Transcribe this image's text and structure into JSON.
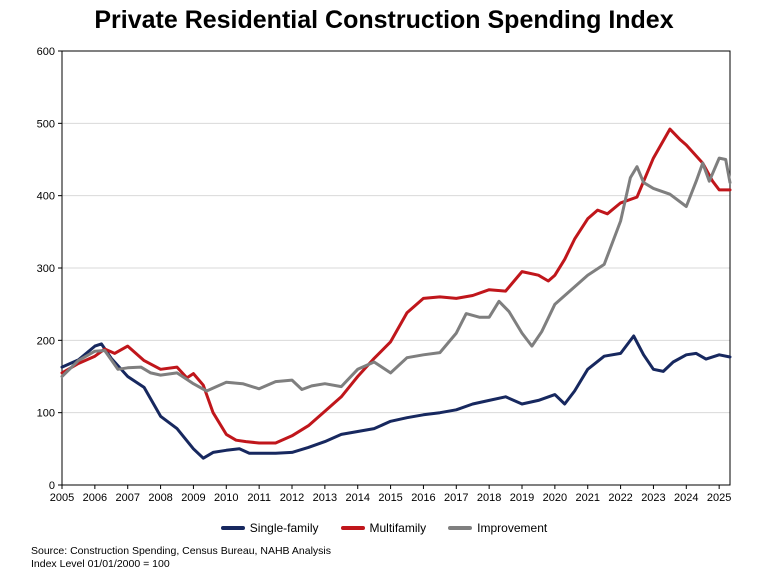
{
  "chart_data": {
    "type": "line",
    "title": "Private Residential Construction Spending Index",
    "xlabel": "",
    "ylabel": "",
    "xlim": [
      2005,
      2025.33
    ],
    "ylim": [
      0,
      600
    ],
    "x_ticks": [
      "2005",
      "2006",
      "2007",
      "2008",
      "2009",
      "2010",
      "2011",
      "2012",
      "2013",
      "2014",
      "2015",
      "2016",
      "2017",
      "2018",
      "2019",
      "2020",
      "2021",
      "2022",
      "2023",
      "2024",
      "2025"
    ],
    "y_ticks": [
      "0",
      "100",
      "200",
      "300",
      "400",
      "500",
      "600"
    ],
    "grid": "horizontal",
    "legend_position": "bottom",
    "series": [
      {
        "name": "Single-family",
        "color": "#17285f",
        "points": [
          [
            2005,
            163
          ],
          [
            2005.5,
            173
          ],
          [
            2006,
            192
          ],
          [
            2006.2,
            195
          ],
          [
            2006.5,
            175
          ],
          [
            2007,
            150
          ],
          [
            2007.5,
            135
          ],
          [
            2008,
            95
          ],
          [
            2008.5,
            78
          ],
          [
            2009,
            50
          ],
          [
            2009.3,
            37
          ],
          [
            2009.6,
            45
          ],
          [
            2010,
            48
          ],
          [
            2010.4,
            50
          ],
          [
            2010.7,
            44
          ],
          [
            2011,
            44
          ],
          [
            2011.5,
            44
          ],
          [
            2012,
            45
          ],
          [
            2012.5,
            52
          ],
          [
            2013,
            60
          ],
          [
            2013.5,
            70
          ],
          [
            2014,
            74
          ],
          [
            2014.5,
            78
          ],
          [
            2015,
            88
          ],
          [
            2015.5,
            93
          ],
          [
            2016,
            97
          ],
          [
            2016.5,
            100
          ],
          [
            2017,
            104
          ],
          [
            2017.5,
            112
          ],
          [
            2018,
            117
          ],
          [
            2018.5,
            122
          ],
          [
            2019,
            112
          ],
          [
            2019.5,
            117
          ],
          [
            2020,
            125
          ],
          [
            2020.3,
            112
          ],
          [
            2020.6,
            130
          ],
          [
            2021,
            160
          ],
          [
            2021.5,
            178
          ],
          [
            2022,
            182
          ],
          [
            2022.4,
            206
          ],
          [
            2022.7,
            180
          ],
          [
            2023,
            160
          ],
          [
            2023.3,
            157
          ],
          [
            2023.6,
            170
          ],
          [
            2024,
            180
          ],
          [
            2024.3,
            182
          ],
          [
            2024.6,
            174
          ],
          [
            2025,
            180
          ],
          [
            2025.33,
            177
          ]
        ]
      },
      {
        "name": "Multifamily",
        "color": "#c0161b",
        "points": [
          [
            2005,
            155
          ],
          [
            2005.5,
            168
          ],
          [
            2006,
            178
          ],
          [
            2006.3,
            188
          ],
          [
            2006.6,
            182
          ],
          [
            2007,
            192
          ],
          [
            2007.5,
            172
          ],
          [
            2008,
            160
          ],
          [
            2008.5,
            163
          ],
          [
            2008.8,
            148
          ],
          [
            2009,
            154
          ],
          [
            2009.3,
            138
          ],
          [
            2009.6,
            100
          ],
          [
            2010,
            70
          ],
          [
            2010.3,
            62
          ],
          [
            2010.6,
            60
          ],
          [
            2011,
            58
          ],
          [
            2011.5,
            58
          ],
          [
            2012,
            68
          ],
          [
            2012.5,
            82
          ],
          [
            2013,
            102
          ],
          [
            2013.5,
            122
          ],
          [
            2014,
            150
          ],
          [
            2014.5,
            175
          ],
          [
            2015,
            198
          ],
          [
            2015.5,
            238
          ],
          [
            2016,
            258
          ],
          [
            2016.5,
            260
          ],
          [
            2017,
            258
          ],
          [
            2017.5,
            262
          ],
          [
            2018,
            270
          ],
          [
            2018.5,
            268
          ],
          [
            2019,
            295
          ],
          [
            2019.5,
            290
          ],
          [
            2019.8,
            282
          ],
          [
            2020,
            290
          ],
          [
            2020.3,
            312
          ],
          [
            2020.6,
            340
          ],
          [
            2021,
            368
          ],
          [
            2021.3,
            380
          ],
          [
            2021.6,
            375
          ],
          [
            2022,
            390
          ],
          [
            2022.5,
            398
          ],
          [
            2023,
            452
          ],
          [
            2023.5,
            492
          ],
          [
            2023.8,
            478
          ],
          [
            2024,
            470
          ],
          [
            2024.5,
            445
          ],
          [
            2024.8,
            420
          ],
          [
            2025,
            408
          ],
          [
            2025.33,
            408
          ]
        ]
      },
      {
        "name": "Improvement",
        "color": "#7f7f7f",
        "points": [
          [
            2005,
            150
          ],
          [
            2005.5,
            172
          ],
          [
            2006,
            185
          ],
          [
            2006.3,
            186
          ],
          [
            2006.7,
            160
          ],
          [
            2007,
            162
          ],
          [
            2007.4,
            163
          ],
          [
            2007.7,
            155
          ],
          [
            2008,
            152
          ],
          [
            2008.5,
            155
          ],
          [
            2009,
            140
          ],
          [
            2009.4,
            130
          ],
          [
            2009.7,
            136
          ],
          [
            2010,
            142
          ],
          [
            2010.5,
            140
          ],
          [
            2011,
            133
          ],
          [
            2011.5,
            143
          ],
          [
            2012,
            145
          ],
          [
            2012.3,
            132
          ],
          [
            2012.6,
            137
          ],
          [
            2013,
            140
          ],
          [
            2013.5,
            136
          ],
          [
            2014,
            160
          ],
          [
            2014.5,
            170
          ],
          [
            2015,
            155
          ],
          [
            2015.5,
            176
          ],
          [
            2016,
            180
          ],
          [
            2016.5,
            183
          ],
          [
            2017,
            210
          ],
          [
            2017.3,
            237
          ],
          [
            2017.7,
            232
          ],
          [
            2018,
            232
          ],
          [
            2018.3,
            254
          ],
          [
            2018.6,
            240
          ],
          [
            2019,
            210
          ],
          [
            2019.3,
            192
          ],
          [
            2019.6,
            212
          ],
          [
            2020,
            250
          ],
          [
            2020.5,
            270
          ],
          [
            2021,
            290
          ],
          [
            2021.5,
            305
          ],
          [
            2022,
            365
          ],
          [
            2022.3,
            425
          ],
          [
            2022.5,
            440
          ],
          [
            2022.7,
            418
          ],
          [
            2023,
            410
          ],
          [
            2023.5,
            402
          ],
          [
            2024,
            385
          ],
          [
            2024.3,
            420
          ],
          [
            2024.5,
            445
          ],
          [
            2024.7,
            420
          ],
          [
            2025,
            452
          ],
          [
            2025.2,
            450
          ],
          [
            2025.33,
            418
          ]
        ]
      }
    ]
  },
  "source_note": "Source: Construction Spending, Census Bureau, NAHB Analysis",
  "index_note": "Index Level 01/01/2000 = 100"
}
